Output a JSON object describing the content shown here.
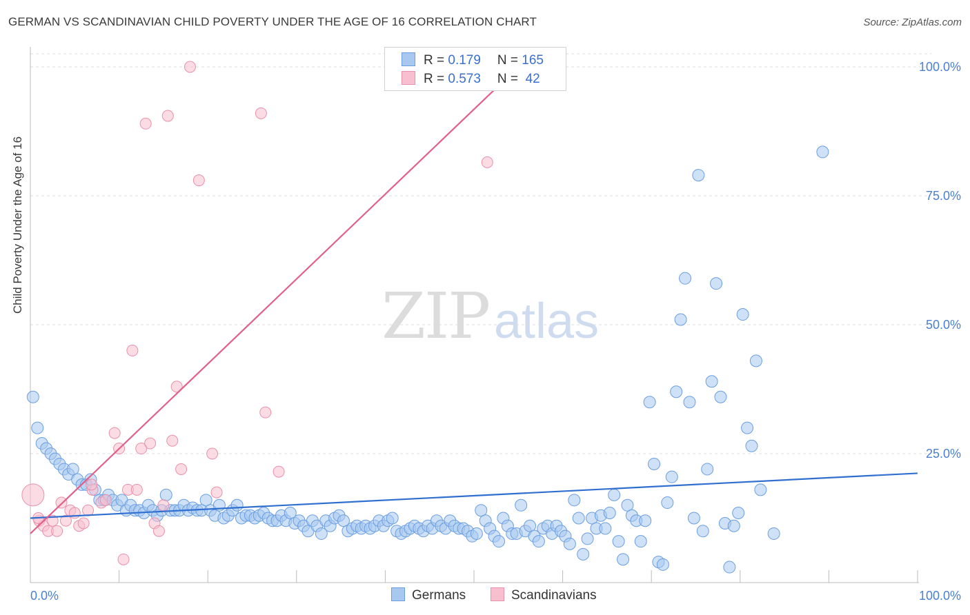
{
  "header": {
    "title": "GERMAN VS SCANDINAVIAN CHILD POVERTY UNDER THE AGE OF 16 CORRELATION CHART",
    "source": "Source: ZipAtlas.com"
  },
  "watermark": {
    "zip": "ZIP",
    "atlas": "atlas"
  },
  "legend": {
    "rows": [
      {
        "r_label": "R = ",
        "r_value": "0.179",
        "n_label": "N = ",
        "n_value": "165",
        "color": "#a8c8f0",
        "border": "#6a9ee0"
      },
      {
        "r_label": "R = ",
        "r_value": "0.573",
        "n_label": "N = ",
        "n_value": " 42",
        "color": "#f7c0d0",
        "border": "#e890aa"
      }
    ]
  },
  "bottom_legend": [
    {
      "label": "Germans",
      "color": "#a8c8f0",
      "border": "#6a9ee0"
    },
    {
      "label": "Scandinavians",
      "color": "#f7c0d0",
      "border": "#e890aa"
    }
  ],
  "chart_data": {
    "type": "scatter",
    "title": "GERMAN VS SCANDINAVIAN CHILD POVERTY UNDER THE AGE OF 16 CORRELATION CHART",
    "xlabel": "",
    "ylabel": "Child Poverty Under the Age of 16",
    "xlim": [
      0,
      100
    ],
    "ylim": [
      0,
      100
    ],
    "x_ticks": [
      "0.0%",
      "100.0%"
    ],
    "y_ticks": [
      {
        "value": 25,
        "label": "25.0%"
      },
      {
        "value": 50,
        "label": "50.0%"
      },
      {
        "value": 75,
        "label": "75.0%"
      },
      {
        "value": 100,
        "label": "100.0%"
      }
    ],
    "grid": true,
    "legend_position": "top-center",
    "series": [
      {
        "name": "Germans",
        "color": "#6a9ee0",
        "fill": "#a8c8f0",
        "r": 0.179,
        "n": 165,
        "trend": {
          "x": [
            0,
            100
          ],
          "y": [
            12.5,
            21.2
          ]
        },
        "points": [
          [
            0.3,
            36
          ],
          [
            0.8,
            30
          ],
          [
            1.3,
            27
          ],
          [
            1.8,
            26
          ],
          [
            2.3,
            25
          ],
          [
            2.8,
            24
          ],
          [
            3.3,
            23
          ],
          [
            3.8,
            22
          ],
          [
            4.3,
            21
          ],
          [
            4.8,
            22
          ],
          [
            5.3,
            20
          ],
          [
            5.8,
            19
          ],
          [
            6.3,
            19
          ],
          [
            6.8,
            20
          ],
          [
            7.3,
            18
          ],
          [
            7.8,
            16
          ],
          [
            8.3,
            16
          ],
          [
            8.8,
            17
          ],
          [
            9.3,
            16
          ],
          [
            9.8,
            15
          ],
          [
            10.3,
            16
          ],
          [
            10.8,
            14
          ],
          [
            11.3,
            15
          ],
          [
            11.8,
            14
          ],
          [
            12.3,
            14
          ],
          [
            12.8,
            13.5
          ],
          [
            13.3,
            15
          ],
          [
            13.8,
            14
          ],
          [
            14.3,
            13
          ],
          [
            14.8,
            14
          ],
          [
            15.3,
            17
          ],
          [
            15.8,
            14
          ],
          [
            16.3,
            14
          ],
          [
            16.8,
            14
          ],
          [
            17.3,
            15
          ],
          [
            17.8,
            14
          ],
          [
            18.3,
            14.5
          ],
          [
            18.8,
            14
          ],
          [
            19.3,
            14
          ],
          [
            19.8,
            16
          ],
          [
            20.3,
            14
          ],
          [
            20.8,
            13
          ],
          [
            21.3,
            15
          ],
          [
            21.8,
            12.5
          ],
          [
            22.3,
            13
          ],
          [
            22.8,
            14
          ],
          [
            23.3,
            15
          ],
          [
            23.8,
            12.5
          ],
          [
            24.3,
            13
          ],
          [
            24.8,
            13
          ],
          [
            25.3,
            12.5
          ],
          [
            25.8,
            13
          ],
          [
            26.3,
            13.5
          ],
          [
            26.8,
            12.5
          ],
          [
            27.3,
            12
          ],
          [
            27.8,
            12
          ],
          [
            28.3,
            13
          ],
          [
            28.8,
            12
          ],
          [
            29.3,
            13.5
          ],
          [
            29.8,
            11.5
          ],
          [
            30.3,
            12
          ],
          [
            30.8,
            11
          ],
          [
            31.3,
            10
          ],
          [
            31.8,
            12
          ],
          [
            32.3,
            11
          ],
          [
            32.8,
            9.5
          ],
          [
            33.3,
            12
          ],
          [
            33.8,
            11
          ],
          [
            34.3,
            12.5
          ],
          [
            34.8,
            13
          ],
          [
            35.3,
            12
          ],
          [
            35.8,
            10
          ],
          [
            36.3,
            10.5
          ],
          [
            36.8,
            11
          ],
          [
            37.3,
            10.5
          ],
          [
            37.8,
            11
          ],
          [
            38.3,
            10.5
          ],
          [
            38.8,
            11
          ],
          [
            39.3,
            12
          ],
          [
            39.8,
            11
          ],
          [
            40.3,
            12
          ],
          [
            40.8,
            12.5
          ],
          [
            41.3,
            10
          ],
          [
            41.8,
            9.5
          ],
          [
            42.3,
            10
          ],
          [
            42.8,
            10.5
          ],
          [
            43.3,
            11
          ],
          [
            43.8,
            10.5
          ],
          [
            44.3,
            10
          ],
          [
            44.8,
            11
          ],
          [
            45.3,
            10.5
          ],
          [
            45.8,
            12
          ],
          [
            46.3,
            11
          ],
          [
            46.8,
            10.5
          ],
          [
            47.3,
            12
          ],
          [
            47.8,
            11
          ],
          [
            48.3,
            10.5
          ],
          [
            48.8,
            10.5
          ],
          [
            49.3,
            10
          ],
          [
            49.8,
            9
          ],
          [
            50.3,
            9.5
          ],
          [
            50.8,
            14
          ],
          [
            51.3,
            12
          ],
          [
            51.8,
            10.5
          ],
          [
            52.3,
            9
          ],
          [
            52.8,
            8
          ],
          [
            53.3,
            12.5
          ],
          [
            53.8,
            11
          ],
          [
            54.3,
            9.5
          ],
          [
            54.8,
            9.5
          ],
          [
            55.3,
            15
          ],
          [
            55.8,
            10
          ],
          [
            56.3,
            11
          ],
          [
            56.8,
            9
          ],
          [
            57.3,
            8
          ],
          [
            57.8,
            10.5
          ],
          [
            58.3,
            11
          ],
          [
            58.8,
            9.5
          ],
          [
            59.3,
            11
          ],
          [
            59.8,
            10
          ],
          [
            60.3,
            9
          ],
          [
            60.8,
            7.5
          ],
          [
            61.3,
            16
          ],
          [
            61.8,
            12.5
          ],
          [
            62.3,
            5.5
          ],
          [
            62.8,
            8.5
          ],
          [
            63.3,
            12.5
          ],
          [
            63.8,
            10.5
          ],
          [
            64.3,
            13
          ],
          [
            64.8,
            10.5
          ],
          [
            65.3,
            13.5
          ],
          [
            65.8,
            17
          ],
          [
            66.3,
            8
          ],
          [
            66.8,
            4.5
          ],
          [
            67.3,
            15
          ],
          [
            67.8,
            13
          ],
          [
            68.3,
            12
          ],
          [
            68.8,
            8
          ],
          [
            69.3,
            12
          ],
          [
            69.8,
            35
          ],
          [
            70.3,
            23
          ],
          [
            70.8,
            4
          ],
          [
            71.3,
            3.5
          ],
          [
            71.8,
            15.5
          ],
          [
            72.3,
            20.5
          ],
          [
            72.8,
            37
          ],
          [
            73.3,
            51
          ],
          [
            73.8,
            59
          ],
          [
            74.3,
            35
          ],
          [
            74.8,
            12.5
          ],
          [
            75.3,
            79
          ],
          [
            75.8,
            10
          ],
          [
            76.3,
            22
          ],
          [
            76.8,
            39
          ],
          [
            77.3,
            58
          ],
          [
            77.8,
            36
          ],
          [
            78.3,
            11.5
          ],
          [
            78.8,
            3
          ],
          [
            79.3,
            11
          ],
          [
            79.8,
            13.5
          ],
          [
            80.3,
            52
          ],
          [
            80.8,
            30
          ],
          [
            81.3,
            26.5
          ],
          [
            81.8,
            43
          ],
          [
            82.3,
            18
          ],
          [
            83.8,
            9.5
          ],
          [
            89.3,
            83.5
          ]
        ]
      },
      {
        "name": "Scandinavians",
        "color": "#e890aa",
        "fill": "#f7c0d0",
        "r": 0.573,
        "n": 42,
        "trend": {
          "x": [
            0,
            55
          ],
          "y": [
            9.5,
            100
          ]
        },
        "points": [
          [
            0.3,
            17
          ],
          [
            1.0,
            12
          ],
          [
            1.5,
            11
          ],
          [
            2.0,
            10
          ],
          [
            2.5,
            12
          ],
          [
            3.0,
            10
          ],
          [
            3.5,
            15.5
          ],
          [
            4.0,
            12
          ],
          [
            4.5,
            14
          ],
          [
            5.0,
            13.5
          ],
          [
            5.5,
            11
          ],
          [
            6.0,
            11.5
          ],
          [
            6.5,
            14
          ],
          [
            7.0,
            18
          ],
          [
            8.0,
            15.5
          ],
          [
            8.5,
            16
          ],
          [
            9.5,
            29
          ],
          [
            10.0,
            26
          ],
          [
            10.5,
            4.5
          ],
          [
            11.0,
            18
          ],
          [
            11.5,
            45
          ],
          [
            12.0,
            18
          ],
          [
            12.5,
            26
          ],
          [
            13.0,
            89
          ],
          [
            13.5,
            27
          ],
          [
            14.0,
            11.5
          ],
          [
            14.5,
            10
          ],
          [
            15.0,
            15
          ],
          [
            15.5,
            90.5
          ],
          [
            16.0,
            27.5
          ],
          [
            16.5,
            38
          ],
          [
            17.0,
            22
          ],
          [
            18.0,
            100
          ],
          [
            19.0,
            78
          ],
          [
            20.5,
            25
          ],
          [
            21.0,
            17.5
          ],
          [
            26.0,
            91
          ],
          [
            26.5,
            33
          ],
          [
            28.0,
            21.5
          ],
          [
            51.5,
            81.5
          ],
          [
            0.9,
            12.5
          ],
          [
            6.9,
            19
          ]
        ]
      }
    ]
  }
}
